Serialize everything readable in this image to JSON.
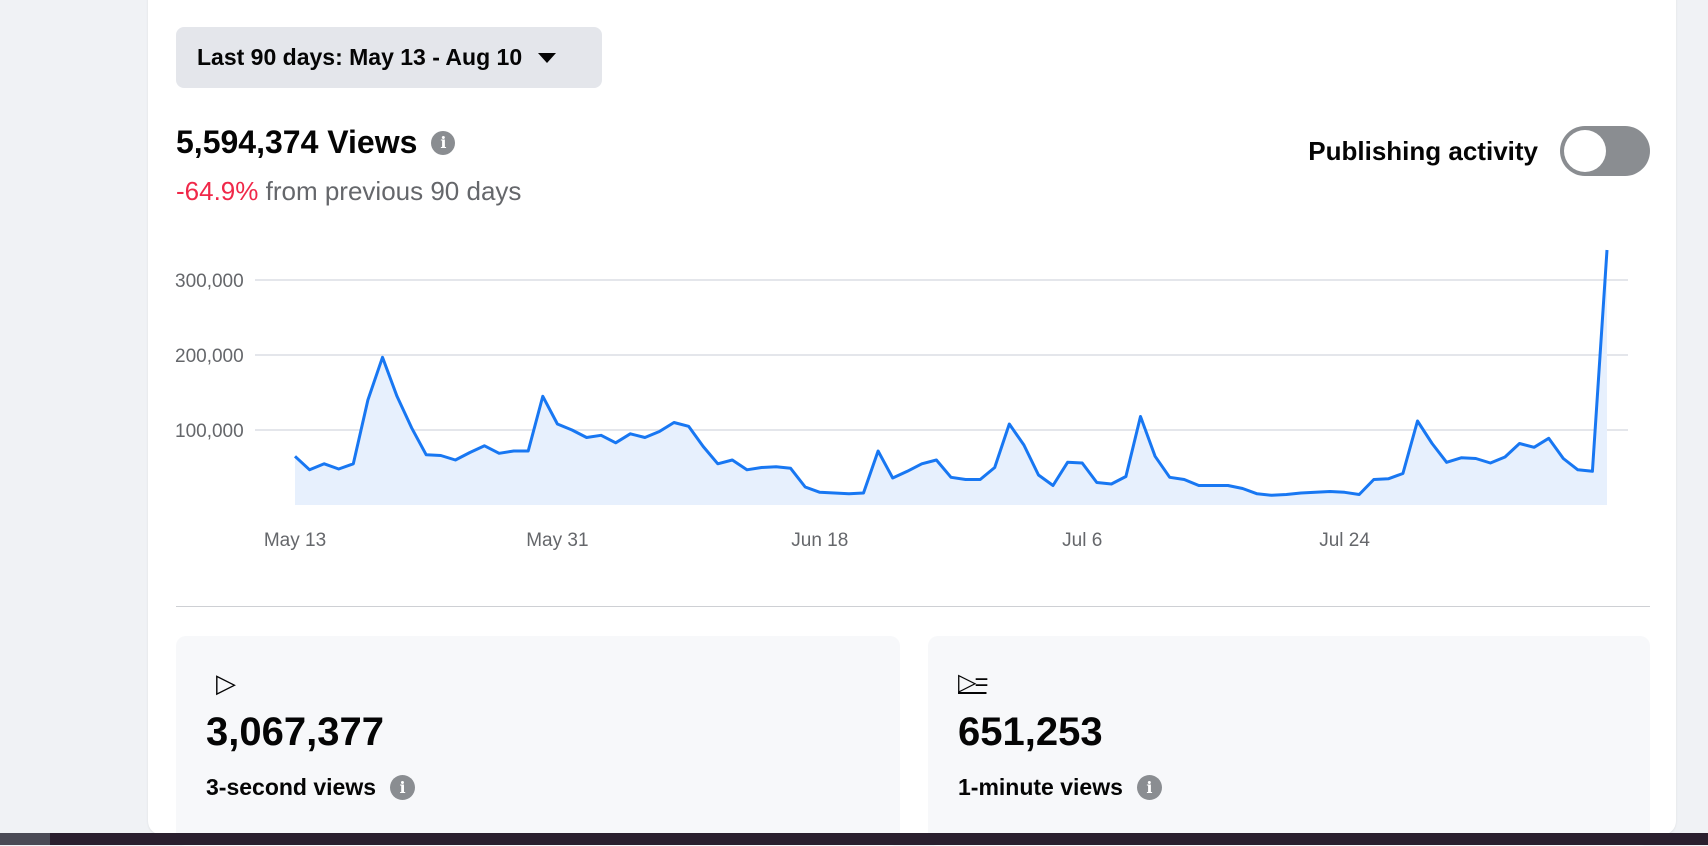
{
  "date_range": {
    "label": "Last 90 days: May 13 - Aug 10"
  },
  "views": {
    "total": "5,594,374 Views",
    "change": "-64.9%",
    "change_suffix": " from previous 90 days"
  },
  "publishing_activity": {
    "label": "Publishing activity",
    "enabled": false
  },
  "chart_data": {
    "type": "area",
    "x_ticks": [
      "May 13",
      "May 31",
      "Jun 18",
      "Jul 6",
      "Jul 24"
    ],
    "y_ticks": [
      "100,000",
      "200,000",
      "300,000"
    ],
    "ylim": [
      0,
      340000
    ],
    "grid": true,
    "series": [
      {
        "color": "#1877f2",
        "fill": "#e7f0fd",
        "values": [
          65000,
          47000,
          55000,
          48000,
          55000,
          140000,
          197000,
          145000,
          103000,
          67000,
          66000,
          60000,
          70000,
          79000,
          69000,
          72000,
          72000,
          145000,
          108000,
          100000,
          90000,
          93000,
          83000,
          95000,
          90000,
          98000,
          110000,
          105000,
          78000,
          55000,
          60000,
          47000,
          50000,
          51000,
          49000,
          24000,
          17000,
          16000,
          15000,
          16000,
          72000,
          36000,
          45000,
          55000,
          60000,
          37000,
          34000,
          34000,
          50000,
          108000,
          80000,
          40000,
          26000,
          57000,
          56000,
          30000,
          28000,
          38000,
          118000,
          65000,
          37000,
          34000,
          26000,
          26000,
          26000,
          22000,
          15000,
          13000,
          14000,
          16000,
          17000,
          18000,
          17000,
          14000,
          34000,
          35000,
          42000,
          112000,
          82000,
          57000,
          63000,
          62000,
          56000,
          64000,
          82000,
          77000,
          89000,
          62000,
          47000,
          45000,
          340000
        ]
      }
    ]
  },
  "stats": [
    {
      "icon": "play-icon",
      "glyph": "▷",
      "value": "3,067,377",
      "label": "3-second views"
    },
    {
      "icon": "play-list-icon",
      "glyph": "▷=",
      "value": "651,253",
      "label": "1-minute views"
    }
  ]
}
